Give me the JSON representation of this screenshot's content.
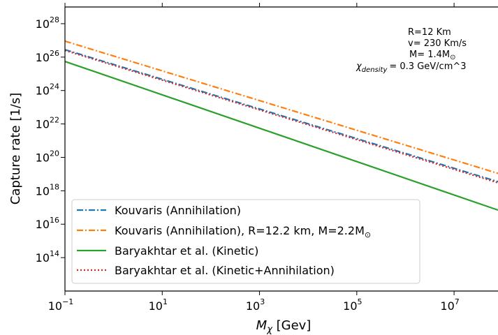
{
  "chart_data": {
    "type": "line",
    "xlabel": "M_χ [Gev]",
    "ylabel": "Capture rate [1/s]",
    "xscale": "log",
    "yscale": "log",
    "xlim": [
      0.1,
      80000000
    ],
    "ylim": [
      1000000000000.0,
      1e+29
    ],
    "x_ticks": [
      {
        "value": 0.1,
        "base": "10",
        "exp": "−1"
      },
      {
        "value": 10,
        "base": "10",
        "exp": "1"
      },
      {
        "value": 1000,
        "base": "10",
        "exp": "3"
      },
      {
        "value": 100000,
        "base": "10",
        "exp": "5"
      },
      {
        "value": 10000000,
        "base": "10",
        "exp": "7"
      }
    ],
    "y_ticks": [
      {
        "value": 100000000000000.0,
        "base": "10",
        "exp": "14"
      },
      {
        "value": 1e+16,
        "base": "10",
        "exp": "16"
      },
      {
        "value": 1e+18,
        "base": "10",
        "exp": "18"
      },
      {
        "value": 1e+20,
        "base": "10",
        "exp": "20"
      },
      {
        "value": 1e+22,
        "base": "10",
        "exp": "22"
      },
      {
        "value": 1e+24,
        "base": "10",
        "exp": "24"
      },
      {
        "value": 1e+26,
        "base": "10",
        "exp": "26"
      },
      {
        "value": 1e+28,
        "base": "10",
        "exp": "28"
      }
    ],
    "annotations": [
      "R=12 Km",
      "v= 230 Km/s",
      "M= 1.4M",
      "= 0.3 GeV/cm^3"
    ],
    "legend_position": "lower-left",
    "series": [
      {
        "name": "Kouvaris (Annihilation)",
        "color": "#1f77b4",
        "dash": "dashdot",
        "x": [
          0.1,
          80000000
        ],
        "y": [
          2.8e+26,
          3.5e+18
        ]
      },
      {
        "name": "Kouvaris (Annihilation), R=12.2 km, M=2.2M",
        "color": "#ff7f0e",
        "dash": "dashdot",
        "x": [
          0.1,
          80000000
        ],
        "y": [
          9e+26,
          1.1e+19
        ]
      },
      {
        "name": "Baryakhtar et al. (Kinetic)",
        "color": "#2ca02c",
        "dash": "solid",
        "x": [
          0.1,
          80000000
        ],
        "y": [
          5.5e+25,
          7e+16
        ]
      },
      {
        "name": "Baryakhtar et al. (Kinetic+Annihilation)",
        "color": "#d62728",
        "dash": "dotted",
        "x": [
          0.1,
          80000000
        ],
        "y": [
          2.5e+26,
          3e+18
        ]
      }
    ]
  }
}
